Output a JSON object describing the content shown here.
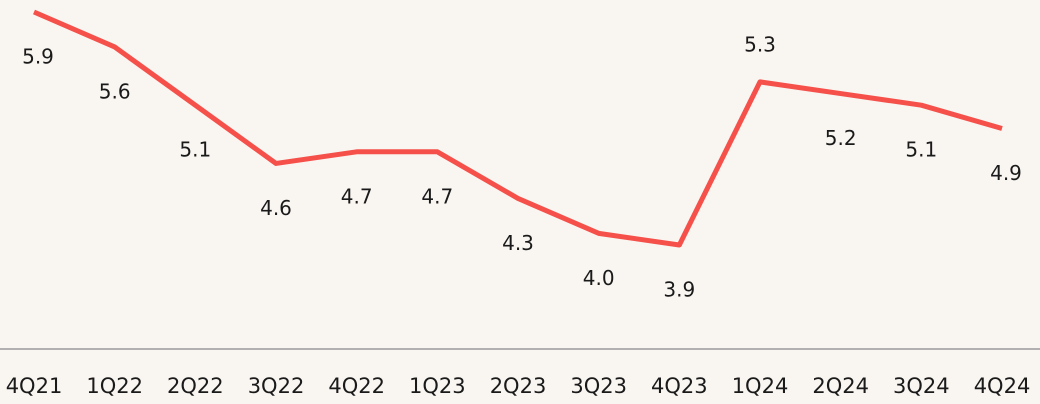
{
  "chart_data": {
    "type": "line",
    "categories": [
      "4Q21",
      "1Q22",
      "2Q22",
      "3Q22",
      "4Q22",
      "1Q23",
      "2Q23",
      "3Q23",
      "4Q23",
      "1Q24",
      "2Q24",
      "3Q24",
      "4Q24"
    ],
    "series": [
      {
        "color": "#f5504a",
        "values": [
          5.9,
          5.6,
          5.1,
          4.6,
          4.7,
          4.7,
          4.3,
          4.0,
          3.9,
          5.3,
          5.2,
          5.1,
          4.9
        ],
        "value_labels": [
          "5.9",
          "5.6",
          "5.1",
          "4.6",
          "4.7",
          "4.7",
          "4.3",
          "4.0",
          "3.9",
          "5.3",
          "5.2",
          "5.1",
          "4.9"
        ]
      }
    ]
  }
}
